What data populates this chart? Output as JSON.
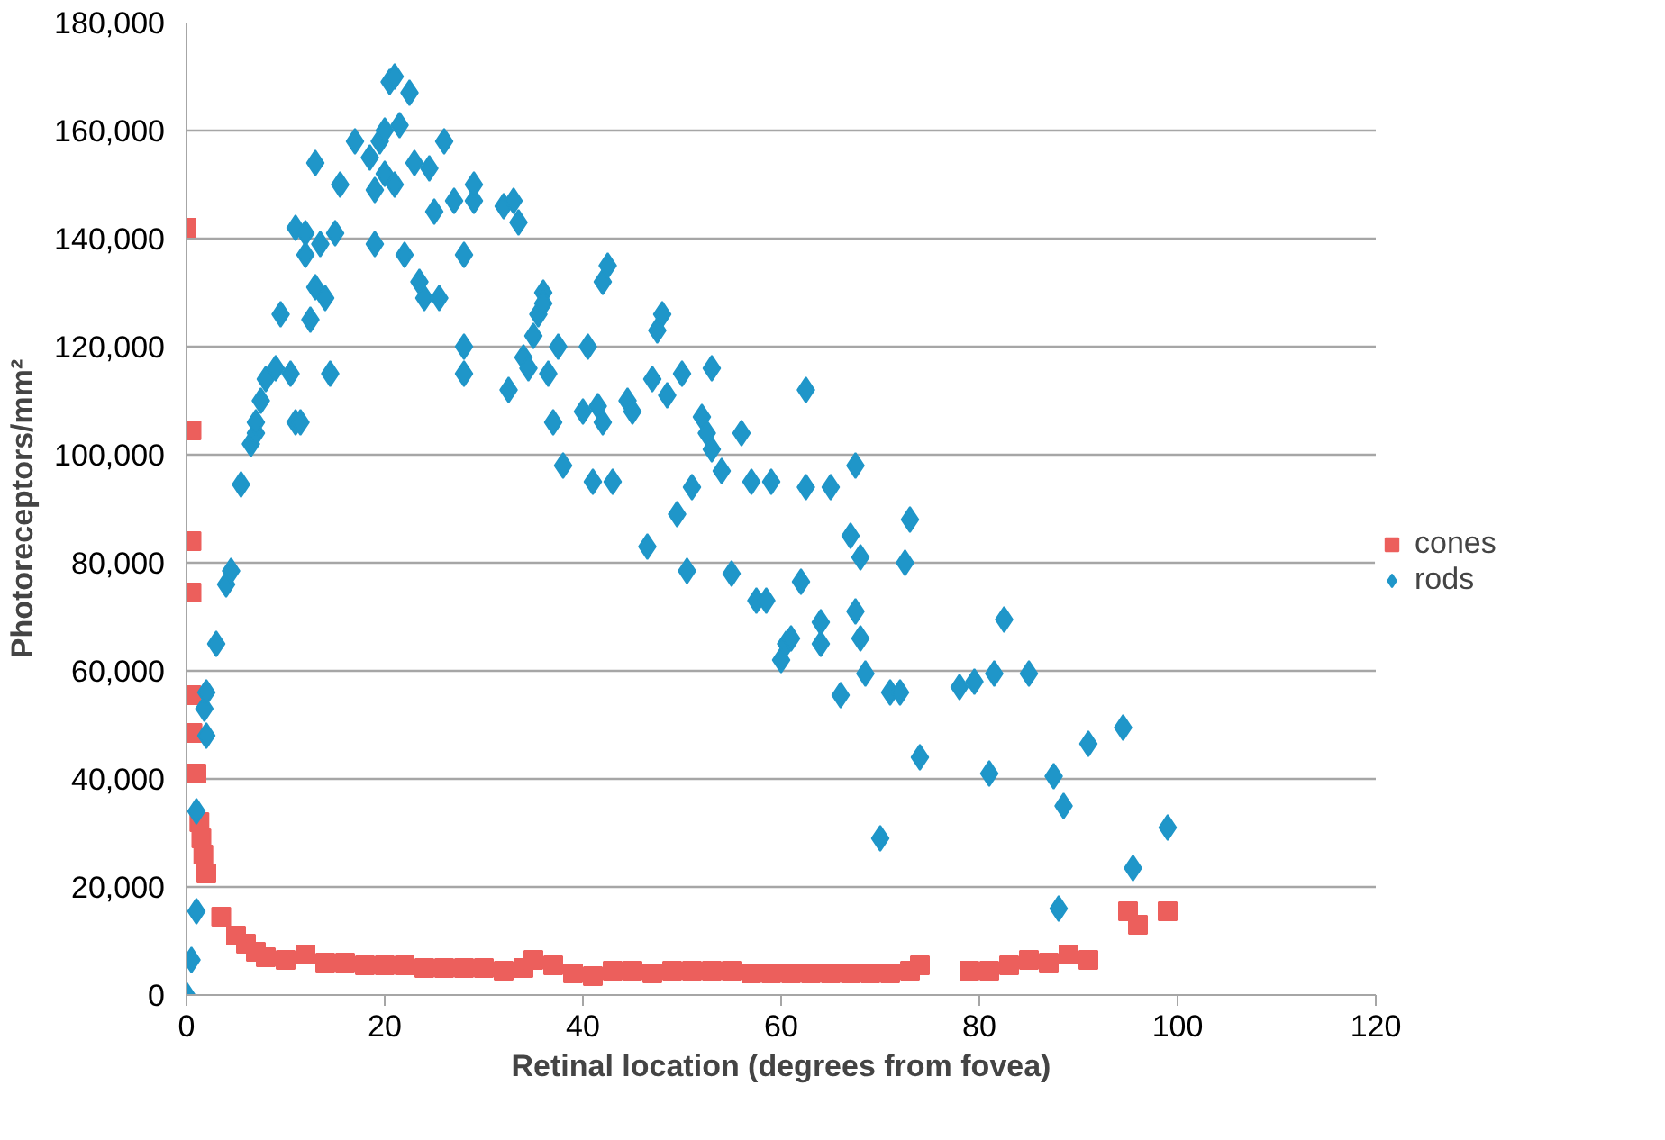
{
  "chart_data": {
    "type": "scatter",
    "xlabel": "Retinal location (degrees from fovea)",
    "ylabel": "Photoreceptors/mm²",
    "xlim": [
      0,
      120
    ],
    "xticks": [
      0,
      20,
      40,
      60,
      80,
      100,
      120
    ],
    "ylim": [
      0,
      180000
    ],
    "yticks": [
      {
        "value": 0,
        "label": "0"
      },
      {
        "value": 20000,
        "label": "20,000"
      },
      {
        "value": 40000,
        "label": "40,000"
      },
      {
        "value": 60000,
        "label": "60,000"
      },
      {
        "value": 80000,
        "label": "80,000"
      },
      {
        "value": 100000,
        "label": "100,000"
      },
      {
        "value": 120000,
        "label": "120,000"
      },
      {
        "value": 140000,
        "label": "140,000"
      },
      {
        "value": 160000,
        "label": "160,000"
      },
      {
        "value": 180000,
        "label": "180,000"
      }
    ],
    "grid": "y",
    "legend": "right",
    "series": [
      {
        "name": "cones",
        "color": "#ec5f5c",
        "marker": "square",
        "x": [
          0,
          0.5,
          0.5,
          0.5,
          0.5,
          0.6,
          1,
          1.3,
          1.5,
          1.7,
          2,
          3.5,
          5,
          6,
          7,
          8,
          10,
          12,
          14,
          16,
          18,
          20,
          22,
          24,
          26,
          28,
          30,
          32,
          34,
          35,
          37,
          39,
          41,
          43,
          45,
          47,
          49,
          51,
          53,
          55,
          57,
          59,
          61,
          63,
          65,
          67,
          69,
          71,
          73,
          74,
          79,
          81,
          83,
          85,
          87,
          89,
          91,
          95,
          96,
          99
        ],
        "values": [
          142000,
          104500,
          84000,
          74500,
          55500,
          48500,
          41000,
          32000,
          29000,
          26000,
          22500,
          14500,
          11000,
          9500,
          8000,
          7000,
          6500,
          7500,
          6000,
          6000,
          5500,
          5500,
          5500,
          5000,
          5000,
          5000,
          5000,
          4500,
          5000,
          6500,
          5500,
          4000,
          3500,
          4500,
          4500,
          4000,
          4500,
          4500,
          4500,
          4500,
          4000,
          4000,
          4000,
          4000,
          4000,
          4000,
          4000,
          4000,
          4500,
          5500,
          4500,
          4500,
          5500,
          6500,
          6000,
          7500,
          6500,
          15500,
          13000,
          15500
        ]
      },
      {
        "name": "rods",
        "color": "#1f96c9",
        "marker": "diamond",
        "x": [
          0,
          0.5,
          1,
          1,
          2,
          1.8,
          2,
          3,
          4,
          4.5,
          5.5,
          6.5,
          7,
          7,
          7.5,
          8,
          9,
          9.5,
          10.5,
          11,
          11.5,
          11,
          12,
          12,
          12.5,
          13,
          13,
          13.5,
          14,
          14.5,
          15,
          15.5,
          17,
          18.5,
          19,
          19,
          19.5,
          20,
          20,
          20.5,
          21,
          21,
          21.5,
          22,
          22.5,
          23,
          23.5,
          24,
          24.5,
          25,
          25.5,
          26,
          27,
          28,
          28,
          28,
          29,
          29,
          32,
          32.5,
          33,
          33.5,
          34,
          34.5,
          35,
          35.5,
          36,
          36,
          36.5,
          37,
          37.5,
          38,
          40,
          40.5,
          41,
          41.5,
          42,
          42,
          42.5,
          43,
          44.5,
          45,
          46.5,
          47,
          47.5,
          48,
          48.5,
          49.5,
          50,
          50.5,
          51,
          52,
          52.5,
          53,
          53,
          54,
          55,
          56,
          57,
          57.5,
          58.5,
          59,
          60,
          60.5,
          61,
          62,
          62.5,
          62.5,
          64,
          64,
          65,
          66,
          67,
          67.5,
          67.5,
          68,
          68,
          68.5,
          70,
          71,
          72,
          72.5,
          73,
          74,
          78,
          79.5,
          81,
          81.5,
          82.5,
          85,
          87.5,
          88,
          88.5,
          91,
          94.5,
          95.5,
          99
        ],
        "values": [
          0,
          6500,
          15500,
          34000,
          48000,
          53000,
          56000,
          65000,
          76000,
          78500,
          94500,
          102000,
          104000,
          106000,
          110000,
          114000,
          116000,
          126000,
          115000,
          106000,
          106000,
          142000,
          141000,
          137000,
          125000,
          131000,
          154000,
          139000,
          129000,
          115000,
          141000,
          150000,
          158000,
          155000,
          139000,
          149000,
          158000,
          152000,
          160000,
          169000,
          170000,
          150000,
          161000,
          137000,
          167000,
          154000,
          132000,
          129000,
          153000,
          145000,
          129000,
          158000,
          147000,
          137000,
          120000,
          115000,
          147000,
          150000,
          146000,
          112000,
          147000,
          143000,
          118000,
          116000,
          122000,
          126000,
          130000,
          128000,
          115000,
          106000,
          120000,
          98000,
          108000,
          120000,
          95000,
          109000,
          106000,
          132000,
          135000,
          95000,
          110000,
          108000,
          83000,
          114000,
          123000,
          126000,
          111000,
          89000,
          115000,
          78500,
          94000,
          107000,
          104000,
          116000,
          101000,
          97000,
          78000,
          104000,
          95000,
          73000,
          73000,
          95000,
          62000,
          65000,
          66000,
          76500,
          94000,
          112000,
          69000,
          65000,
          94000,
          55500,
          85000,
          98000,
          71000,
          66000,
          81000,
          59500,
          29000,
          56000,
          56000,
          80000,
          88000,
          44000,
          57000,
          58000,
          41000,
          59500,
          69500,
          59500,
          40500,
          16000,
          35000,
          46500,
          49500,
          23500,
          31000
        ]
      }
    ]
  }
}
